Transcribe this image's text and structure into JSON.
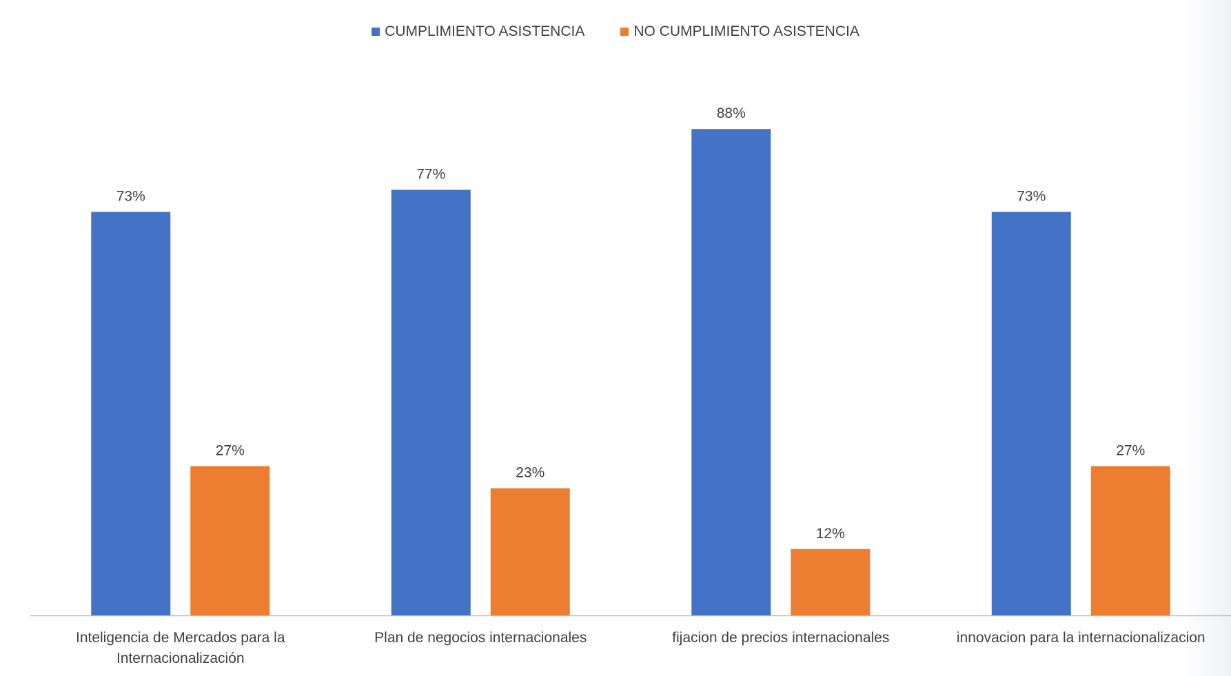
{
  "chart_data": {
    "type": "bar",
    "categories": [
      [
        "Inteligencia de Mercados para la",
        "Internacionalización"
      ],
      [
        "Plan de negocios internacionales"
      ],
      [
        "fijacion de precios internacionales"
      ],
      [
        "innovacion para la internacionalizacion"
      ]
    ],
    "series": [
      {
        "name": "CUMPLIMIENTO ASISTENCIA",
        "color": "#4472C4",
        "values": [
          73,
          77,
          88,
          73
        ],
        "labels": [
          "73%",
          "77%",
          "88%",
          "73%"
        ]
      },
      {
        "name": "NO CUMPLIMIENTO ASISTENCIA",
        "color": "#ED7D31",
        "values": [
          27,
          23,
          12,
          27
        ],
        "labels": [
          "27%",
          "23%",
          "12%",
          "27%"
        ]
      }
    ],
    "ylim": [
      0,
      100
    ],
    "legend_position": "top",
    "grid": false,
    "axis_color": "#BFBFBF"
  }
}
